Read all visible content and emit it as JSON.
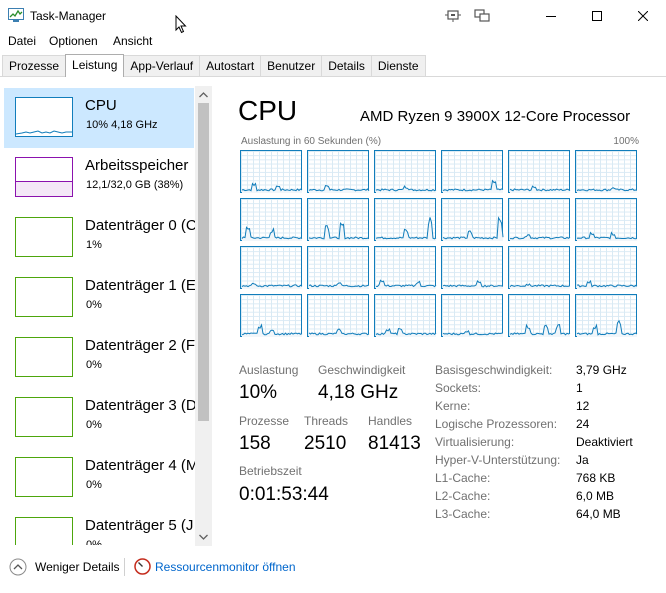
{
  "window": {
    "title": "Task-Manager"
  },
  "menu": [
    "Datei",
    "Optionen",
    "Ansicht"
  ],
  "tabs": [
    "Prozesse",
    "Leistung",
    "App-Verlauf",
    "Autostart",
    "Benutzer",
    "Details",
    "Dienste"
  ],
  "active_tab": "Leistung",
  "sidebar": {
    "items": [
      {
        "title": "CPU",
        "sub": "10%  4,18 GHz",
        "color": "#117dbb"
      },
      {
        "title": "Arbeitsspeicher",
        "sub": "12,1/32,0 GB (38%)",
        "color": "#8b12ae"
      },
      {
        "title": "Datenträger 0 (C",
        "sub": "1%",
        "color": "#4da60c"
      },
      {
        "title": "Datenträger 1 (E",
        "sub": "0%",
        "color": "#4da60c"
      },
      {
        "title": "Datenträger 2 (F",
        "sub": "0%",
        "color": "#4da60c"
      },
      {
        "title": "Datenträger 3 (D",
        "sub": "0%",
        "color": "#4da60c"
      },
      {
        "title": "Datenträger 4 (M",
        "sub": "0%",
        "color": "#4da60c"
      },
      {
        "title": "Datenträger 5 (J",
        "sub": "0%",
        "color": "#4da60c"
      }
    ],
    "memory_used_fraction": 0.38
  },
  "main": {
    "title": "CPU",
    "model": "AMD Ryzen 9 3900X 12-Core Processor",
    "graph_caption": "Auslastung in 60 Sekunden (%)",
    "graph_max": "100%",
    "stats": {
      "auslastung_label": "Auslastung",
      "auslastung": "10%",
      "geschw_label": "Geschwindigkeit",
      "geschw": "4,18 GHz",
      "prozesse_label": "Prozesse",
      "prozesse": "158",
      "threads_label": "Threads",
      "threads": "2510",
      "handles_label": "Handles",
      "handles": "81413",
      "betrieb_label": "Betriebszeit",
      "betrieb": "0:01:53:44"
    },
    "info": [
      {
        "label": "Basisgeschwindigkeit:",
        "value": "3,79 GHz"
      },
      {
        "label": "Sockets:",
        "value": "1"
      },
      {
        "label": "Kerne:",
        "value": "12"
      },
      {
        "label": "Logische Prozessoren:",
        "value": "24"
      },
      {
        "label": "Virtualisierung:",
        "value": "Deaktiviert"
      },
      {
        "label": "Hyper-V-Unterstützung:",
        "value": "Ja"
      },
      {
        "label": "L1-Cache:",
        "value": "768 KB"
      },
      {
        "label": "L2-Cache:",
        "value": "6,0 MB"
      },
      {
        "label": "L3-Cache:",
        "value": "64,0 MB"
      }
    ]
  },
  "footer": {
    "fewer_details": "Weniger Details",
    "resource_monitor": "Ressourcenmonitor öffnen"
  },
  "colors": {
    "cpu": "#117dbb",
    "memory": "#8b12ae",
    "disk": "#4da60c",
    "selected": "#cce8ff"
  }
}
